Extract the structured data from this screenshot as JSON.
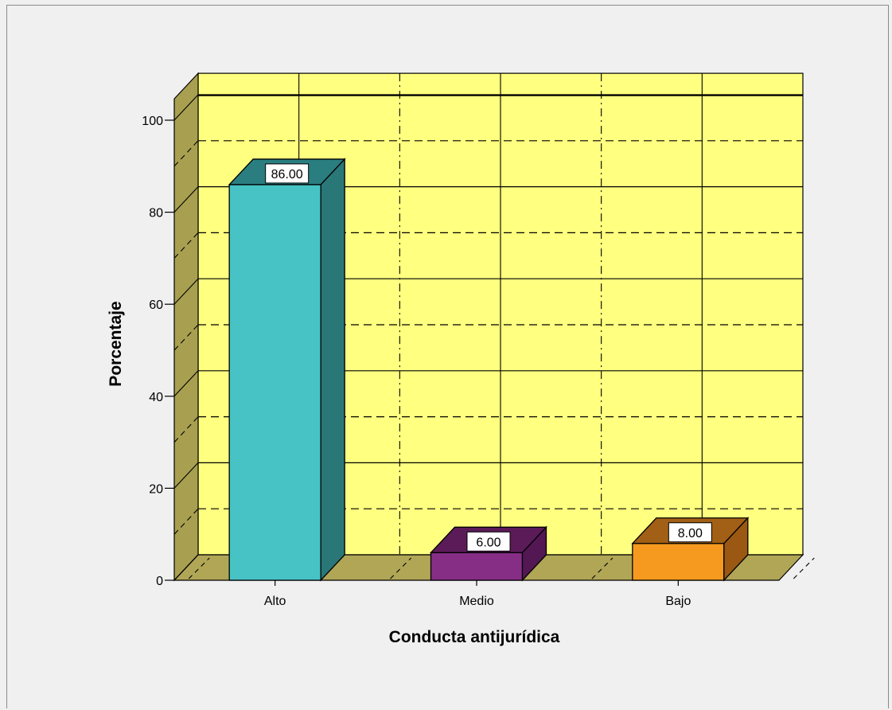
{
  "chart_data": {
    "type": "bar",
    "style": "3d-bar",
    "categories": [
      "Alto",
      "Medio",
      "Bajo"
    ],
    "values": [
      86.0,
      6.0,
      8.0
    ],
    "data_labels": [
      "86.00",
      "6.00",
      "8.00"
    ],
    "bar_colors": [
      {
        "front": "#47c3c5",
        "top": "#2b7e80",
        "side": "#2a7778"
      },
      {
        "front": "#862e86",
        "top": "#5a1b58",
        "side": "#531753"
      },
      {
        "front": "#f59a1f",
        "top": "#a26016",
        "side": "#9a5812"
      }
    ],
    "title": "",
    "xlabel": "Conducta antijurídica",
    "ylabel": "Porcentaje",
    "ylim": [
      0,
      105
    ],
    "yticks": [
      0,
      20,
      40,
      60,
      80,
      100
    ],
    "grid": true,
    "legend": "none",
    "colors": {
      "background": "#f0f0f0",
      "back_wall": "#ffff80",
      "side_wall": "#a8a050",
      "floor": "#b0a656"
    }
  }
}
